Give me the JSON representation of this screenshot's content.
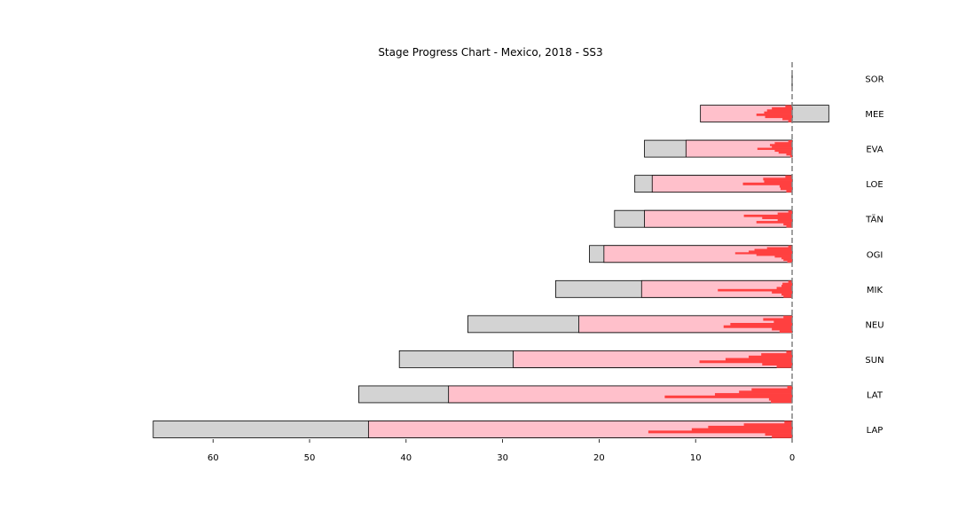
{
  "chart_data": {
    "type": "bar",
    "orientation": "horizontal",
    "title": "Stage Progress Chart - Mexico, 2018 - SS3",
    "xlabel": "",
    "ylabel": "",
    "x_axis_reversed": true,
    "xlim": [
      -3.7,
      66.8
    ],
    "xticks": [
      60,
      50,
      40,
      30,
      20,
      10,
      0
    ],
    "zero_line": "dashed",
    "colors": {
      "prior_gap": "#d3d3d3",
      "stage_gap": "#ffc0cb",
      "split_segments": "#ff4040",
      "zero_line": "#808080",
      "edge": "#000000"
    },
    "categories": [
      "SOR",
      "MEE",
      "EVA",
      "LOE",
      "TÄN",
      "OGI",
      "MIK",
      "NEU",
      "SUN",
      "LAT",
      "LAP"
    ],
    "series": [
      {
        "values": [
          0,
          -3.8,
          15.3,
          16.3,
          18.4,
          21.0,
          24.5,
          33.6,
          40.7,
          44.9,
          66.2
        ]
      },
      {
        "values": [
          0,
          9.5,
          11.0,
          14.5,
          15.3,
          19.5,
          15.6,
          22.1,
          28.9,
          35.6,
          43.9
        ]
      }
    ],
    "split_segments": [
      [],
      [
        0.7,
        2.1,
        2.6,
        2.9,
        3.7,
        2.8,
        1.0,
        0.4
      ],
      [
        0.4,
        1.8,
        2.3,
        2.1,
        3.6,
        1.8,
        1.4,
        0.6,
        0.2
      ],
      [
        0.7,
        3.0,
        2.9,
        5.1,
        1.3,
        1.2,
        0.6
      ],
      [
        0.4,
        1.5,
        5.0,
        3.1,
        1.5,
        3.7,
        0.9,
        0.6
      ],
      [
        0.4,
        2.6,
        3.9,
        4.5,
        5.9,
        3.7,
        1.8,
        1.1,
        0.9,
        0.5
      ],
      [
        0.4,
        1.0,
        1.1,
        1.6,
        7.7,
        2.1,
        1.1,
        0.9
      ],
      [
        0.9,
        3.0,
        1.9,
        6.4,
        7.1,
        2.1,
        1.3
      ],
      [
        0.6,
        3.2,
        4.5,
        6.9,
        9.6,
        3.1,
        1.6
      ],
      [
        0.5,
        4.2,
        5.5,
        8.0,
        13.2,
        2.4,
        2.2
      ],
      [
        0.8,
        5.0,
        8.7,
        10.4,
        14.9,
        2.8,
        2.1
      ]
    ]
  }
}
